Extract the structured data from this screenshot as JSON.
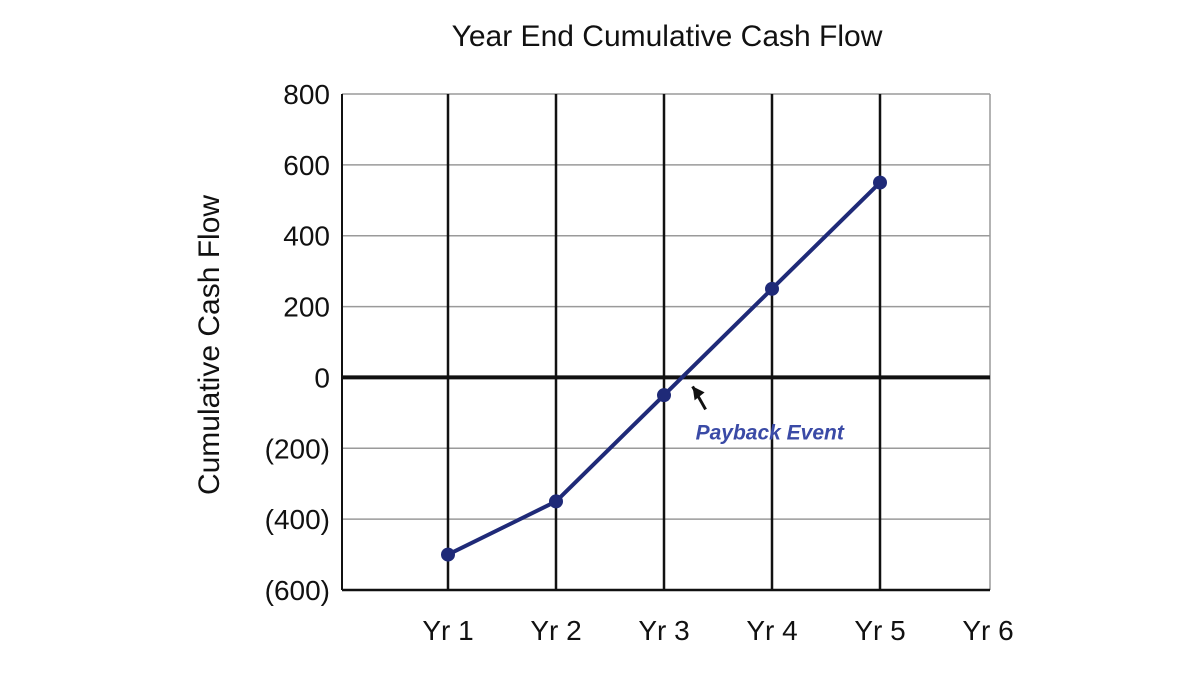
{
  "chart_data": {
    "type": "line",
    "title": "Year End Cumulative Cash Flow",
    "xlabel": "",
    "ylabel": "Cumulative Cash Flow",
    "categories": [
      "Yr 1",
      "Yr 2",
      "Yr 3",
      "Yr 4",
      "Yr 5",
      "Yr 6"
    ],
    "y_ticks": [
      800,
      600,
      400,
      200,
      0,
      -200,
      -400,
      -600
    ],
    "y_tick_labels": [
      "800",
      "600",
      "400",
      "200",
      "0",
      "(200)",
      "(400)",
      "(600)"
    ],
    "ylim": [
      -600,
      800
    ],
    "grid": true,
    "series": [
      {
        "x": [
          "Yr 1",
          "Yr 2",
          "Yr 3",
          "Yr 4",
          "Yr 5"
        ],
        "values": [
          -500,
          -350,
          -50,
          250,
          550
        ]
      }
    ],
    "annotations": [
      {
        "text": "Payback Event",
        "x": 3.2,
        "y": 0
      }
    ],
    "colors": {
      "series": "#1f2a78",
      "annotation": "#3a4aa6",
      "grid": "#9a9a9a",
      "category_line": "#111111",
      "zero_line": "#111111"
    }
  }
}
